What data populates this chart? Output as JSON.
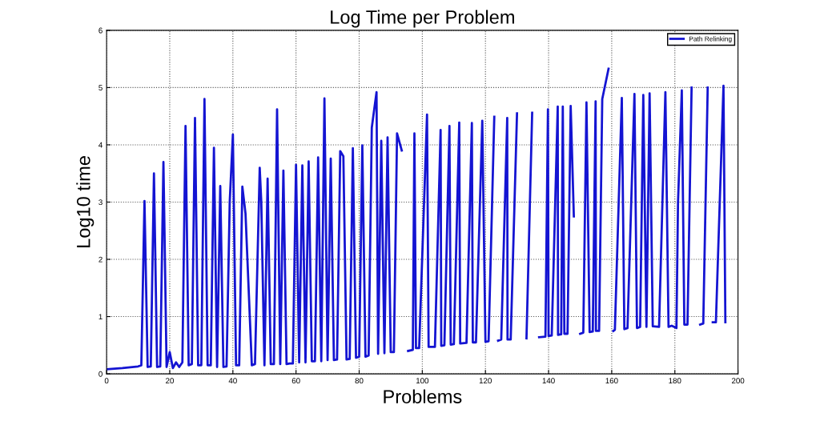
{
  "chart_data": {
    "type": "line",
    "title": "Log Time per Problem",
    "xlabel": "Problems",
    "ylabel": "Log10 time",
    "xlim": [
      0,
      200
    ],
    "xticks": [
      0,
      20,
      40,
      60,
      80,
      100,
      120,
      140,
      160,
      180,
      200
    ],
    "ylim": [
      0,
      6
    ],
    "yticks": [
      0,
      1,
      2,
      3,
      4,
      5,
      6
    ],
    "grid": true,
    "legend": "top right",
    "line_style": "solid",
    "marker": "none",
    "x": [
      0,
      5,
      10,
      11,
      12,
      13,
      14,
      15,
      16,
      17,
      18,
      19,
      20,
      21,
      22,
      23,
      24,
      25,
      26,
      27,
      28,
      29,
      30,
      31,
      32,
      33,
      34,
      35,
      36,
      37,
      38,
      39,
      40,
      41,
      42,
      43,
      44,
      46,
      47,
      48.5,
      49,
      50,
      51,
      52,
      53,
      54,
      55,
      56,
      57,
      58,
      59,
      60,
      61,
      62,
      63,
      64,
      65,
      66,
      67,
      68,
      69,
      70,
      71,
      72,
      73,
      74,
      75,
      76,
      77,
      78,
      79,
      80,
      81,
      82,
      83,
      84,
      85.5,
      86,
      87,
      88,
      89,
      90,
      91,
      92,
      93.5,
      94.5,
      95.5,
      97,
      97.5,
      98,
      99,
      101.5,
      102,
      103,
      104,
      105.8,
      106,
      107,
      108.6,
      109,
      110,
      111.7,
      112,
      114,
      115.7,
      116,
      117,
      119,
      120,
      121,
      122.8,
      123.5,
      124,
      125,
      126.9,
      127,
      128,
      130,
      131,
      133,
      134.8,
      136,
      137,
      139,
      139.8,
      140,
      141,
      142.9,
      143,
      144,
      144.5,
      145,
      146,
      147,
      148,
      149,
      150,
      151,
      152,
      153,
      154,
      154.9,
      155,
      156,
      157,
      159,
      160,
      160.5,
      161,
      163.2,
      164,
      165,
      167.2,
      168,
      169,
      170,
      171,
      172,
      173,
      175,
      177,
      178,
      179,
      180.5,
      181,
      182.2,
      183,
      184,
      185.3,
      186,
      188,
      189,
      190.4,
      191,
      192,
      193,
      195.4,
      196
    ],
    "series": [
      {
        "name": "Path Relinking",
        "color": "#1414d2",
        "values": [
          0.08,
          0.1,
          0.13,
          0.15,
          3.02,
          0.12,
          0.13,
          3.5,
          0.12,
          0.13,
          3.7,
          0.12,
          0.38,
          0.1,
          0.2,
          0.12,
          0.2,
          4.33,
          0.15,
          0.17,
          4.47,
          0.15,
          0.15,
          4.8,
          0.15,
          0.15,
          3.95,
          0.12,
          3.28,
          0.12,
          0.13,
          3.0,
          4.18,
          0.15,
          0.15,
          3.27,
          2.8,
          0.15,
          0.17,
          3.6,
          3.0,
          0.15,
          3.41,
          0.17,
          0.17,
          4.62,
          0.17,
          3.55,
          0.17,
          0.18,
          0.18,
          3.65,
          0.2,
          3.64,
          0.2,
          3.71,
          0.22,
          0.22,
          3.78,
          0.22,
          4.81,
          0.24,
          3.76,
          0.24,
          0.25,
          3.89,
          3.8,
          0.25,
          0.26,
          3.94,
          0.28,
          0.3,
          3.99,
          0.3,
          0.32,
          4.3,
          4.92,
          0.35,
          4.07,
          0.36,
          4.13,
          0.38,
          0.38,
          4.2,
          3.9,
          null,
          0.4,
          0.42,
          4.2,
          0.45,
          0.45,
          4.53,
          0.47,
          0.47,
          0.47,
          4.26,
          0.49,
          0.5,
          4.33,
          0.51,
          0.52,
          4.39,
          0.53,
          0.54,
          4.38,
          0.55,
          0.55,
          4.42,
          0.56,
          0.57,
          4.49,
          null,
          0.58,
          0.6,
          4.47,
          0.6,
          0.6,
          4.55,
          null,
          0.62,
          4.56,
          null,
          0.64,
          0.65,
          4.62,
          0.66,
          0.67,
          4.67,
          0.68,
          0.69,
          4.67,
          0.7,
          0.7,
          4.68,
          2.75,
          null,
          0.7,
          0.72,
          4.74,
          0.73,
          0.74,
          4.76,
          0.75,
          0.75,
          4.8,
          5.33,
          null,
          0.75,
          0.77,
          4.82,
          0.78,
          0.8,
          4.89,
          0.8,
          0.82,
          4.87,
          0.82,
          4.9,
          0.83,
          0.82,
          4.92,
          0.82,
          0.84,
          0.8,
          3.0,
          4.95,
          0.86,
          0.86,
          5.0,
          null,
          0.86,
          0.88,
          5.0,
          null,
          0.9,
          0.9,
          5.03,
          0.9
        ]
      }
    ]
  }
}
